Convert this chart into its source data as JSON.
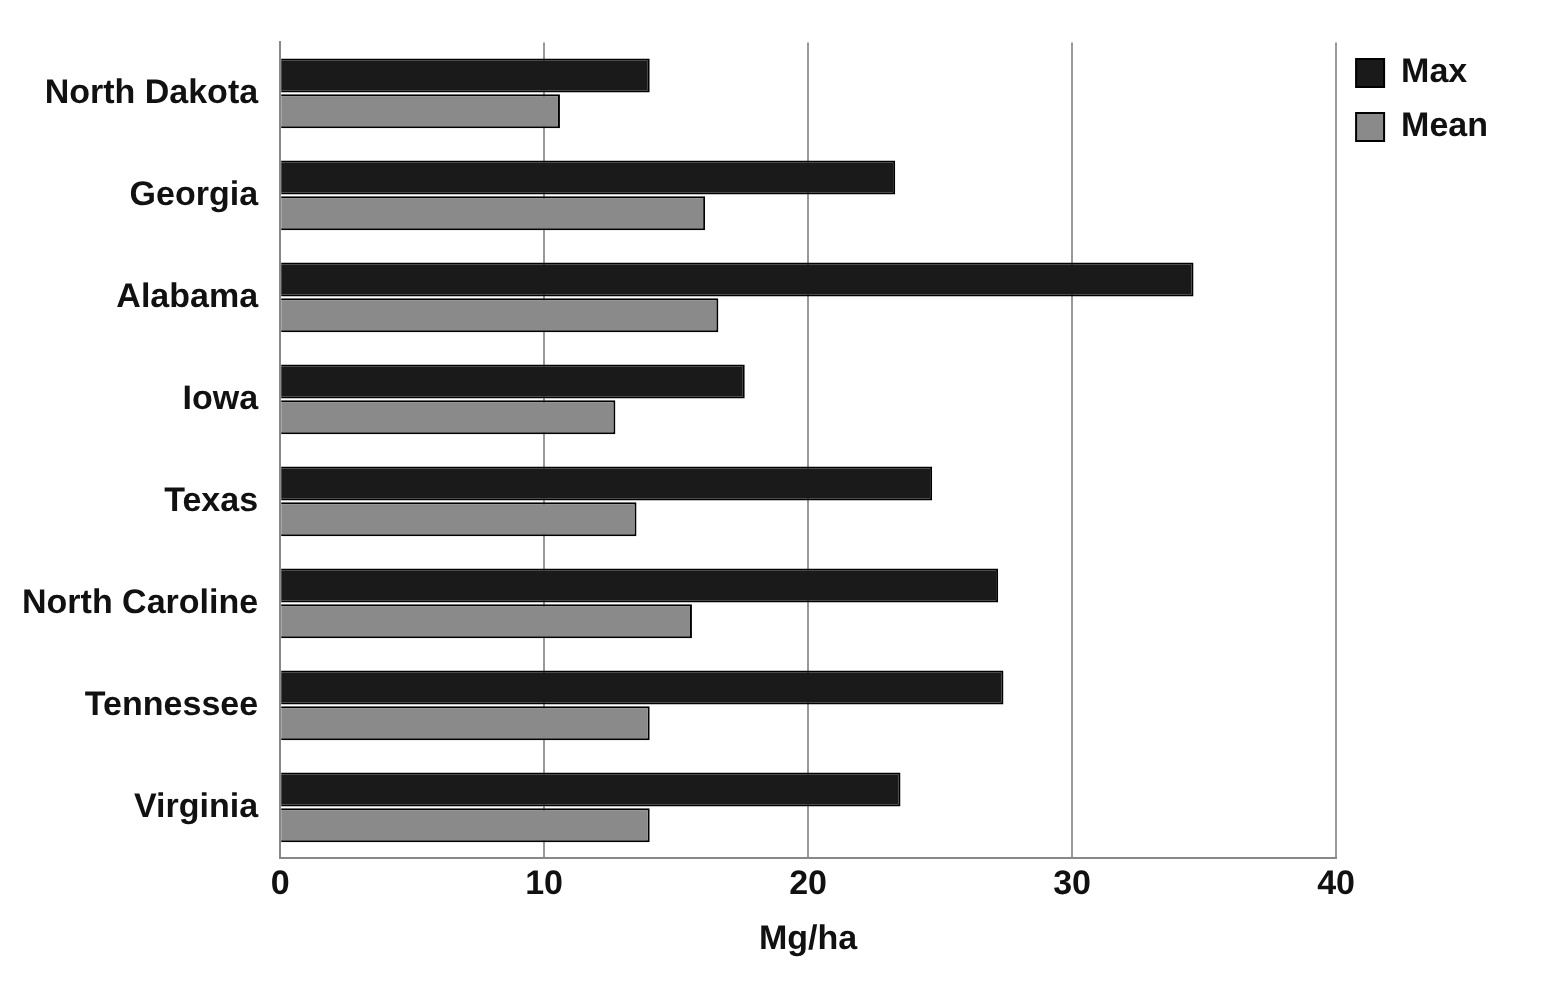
{
  "chart_data": {
    "type": "bar",
    "orientation": "horizontal",
    "xlabel": "Mg/ha",
    "categories": [
      "North Dakota",
      "Georgia",
      "Alabama",
      "Iowa",
      "Texas",
      "North Caroline",
      "Tennessee",
      "Virginia"
    ],
    "series": [
      {
        "name": "Max",
        "color": "#1a1a1a",
        "values": [
          14.0,
          23.3,
          34.6,
          17.6,
          24.7,
          27.2,
          27.4,
          23.5
        ]
      },
      {
        "name": "Mean",
        "color": "#8a8a8a",
        "values": [
          10.6,
          16.1,
          16.6,
          12.7,
          13.5,
          15.6,
          14.0,
          14.0
        ]
      }
    ],
    "xlim": [
      0,
      40
    ],
    "xticks": [
      0,
      10,
      20,
      30,
      40
    ],
    "grid": "x",
    "legend": "top right"
  }
}
